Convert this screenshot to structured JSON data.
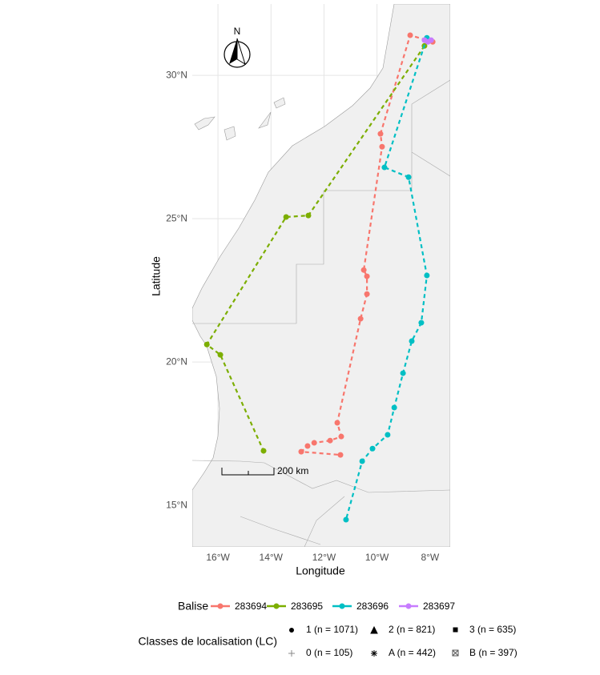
{
  "chart_data": {
    "type": "track",
    "xlabel": "Longitude",
    "ylabel": "Latitude",
    "xlim": [
      -16.97,
      -7.24
    ],
    "ylim": [
      13.55,
      32.49
    ],
    "xticks": [
      {
        "value": -16,
        "label": "16°W"
      },
      {
        "value": -14,
        "label": "14°W"
      },
      {
        "value": -12,
        "label": "12°W"
      },
      {
        "value": -10,
        "label": "10°W"
      },
      {
        "value": -8,
        "label": "8°W"
      }
    ],
    "yticks": [
      {
        "value": 15,
        "label": "15°N"
      },
      {
        "value": 20,
        "label": "20°N"
      },
      {
        "value": 25,
        "label": "25°N"
      },
      {
        "value": 30,
        "label": "30°N"
      }
    ],
    "grid": true,
    "legend_title": "Balise",
    "series": [
      {
        "name": "283694",
        "color": "#F8766D",
        "x": [
          -7.9,
          -8.75,
          -9.87,
          -9.81,
          -10.5,
          -10.38,
          -10.38,
          -10.62,
          -11.5,
          -11.35,
          -11.77,
          -12.37,
          -12.62,
          -12.86,
          -11.38
        ],
        "y": [
          31.17,
          31.4,
          27.96,
          27.51,
          23.21,
          22.99,
          22.37,
          21.51,
          17.88,
          17.4,
          17.26,
          17.18,
          17.07,
          16.87,
          16.76
        ]
      },
      {
        "name": "283695",
        "color": "#7CAE00",
        "x": [
          -8.21,
          -12.59,
          -13.43,
          -16.42,
          -15.91,
          -14.28
        ],
        "y": [
          31.03,
          25.11,
          25.06,
          20.61,
          20.25,
          16.9
        ]
      },
      {
        "name": "283696",
        "color": "#00BFC4",
        "x": [
          -8.12,
          -9.72,
          -8.81,
          -8.12,
          -8.33,
          -8.69,
          -9.02,
          -9.35,
          -9.6,
          -10.17,
          -10.56,
          -11.17
        ],
        "y": [
          31.31,
          26.79,
          26.45,
          23.02,
          21.37,
          20.73,
          19.61,
          18.41,
          17.46,
          16.98,
          16.54,
          14.5
        ]
      },
      {
        "name": "283697",
        "color": "#C77CFF",
        "x": [
          -8.21,
          -8.08,
          -7.96
        ],
        "y": [
          31.23,
          31.17,
          31.23
        ]
      }
    ],
    "lc_title": "Classes de localisation (LC)",
    "lc_classes": [
      "1 (n = 1071)",
      "2 (n = 821)",
      "3 (n = 635)",
      "0 (n = 105)",
      "A (n = 442)",
      "B (n = 397)"
    ],
    "scale_label": "200 km",
    "north_label": "N"
  }
}
